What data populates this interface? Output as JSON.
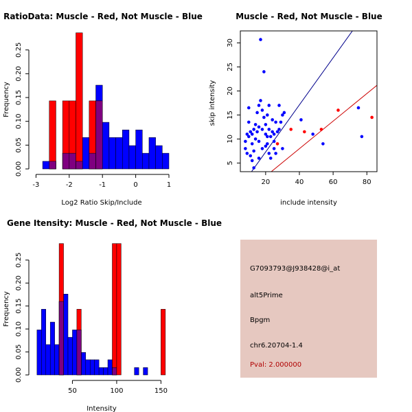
{
  "colors": {
    "red": "#ff0000",
    "blue": "#0000ff",
    "overlap": "#7f0080",
    "panel_bg": "#e6c8c0",
    "pval": "#b00000",
    "fit_blue": "#00008b",
    "fit_red": "#cc0000"
  },
  "chart_data": [
    {
      "id": "ratio_hist",
      "type": "bar",
      "title": "RatioData: Muscle - Red, Not Muscle - Blue",
      "xlabel": "Log2 Ratio Skip/Include",
      "ylabel": "Frequency",
      "xlim": [
        -3.05,
        1.0
      ],
      "ylim": [
        0,
        0.29
      ],
      "xticks": [
        -3,
        -2,
        -1,
        0,
        1
      ],
      "xtick_labels": [
        "-3",
        "-2",
        "-1",
        "0",
        "1"
      ],
      "yticks": [
        0.0,
        0.05,
        0.1,
        0.15,
        0.2,
        0.25
      ],
      "ytick_labels": [
        "0.00",
        "0.05",
        "0.10",
        "0.15",
        "0.20",
        "0.25"
      ],
      "series": [
        {
          "name": "Not Muscle",
          "color": "blue",
          "bins": [
            [
              -2.8,
              -2.6,
              0.016
            ],
            [
              -2.6,
              -2.4,
              0.016
            ],
            [
              -2.2,
              -2.0,
              0.033
            ],
            [
              -2.0,
              -1.8,
              0.033
            ],
            [
              -1.8,
              -1.6,
              0.016
            ],
            [
              -1.6,
              -1.4,
              0.066
            ],
            [
              -1.4,
              -1.2,
              0.033
            ],
            [
              -1.2,
              -1.0,
              0.176
            ],
            [
              -1.0,
              -0.8,
              0.098
            ],
            [
              -0.8,
              -0.6,
              0.066
            ],
            [
              -0.6,
              -0.4,
              0.066
            ],
            [
              -0.4,
              -0.2,
              0.082
            ],
            [
              -0.2,
              0.0,
              0.049
            ],
            [
              0.0,
              0.2,
              0.082
            ],
            [
              0.2,
              0.4,
              0.033
            ],
            [
              0.4,
              0.6,
              0.066
            ],
            [
              0.6,
              0.8,
              0.049
            ],
            [
              0.8,
              1.0,
              0.033
            ]
          ]
        },
        {
          "name": "Muscle",
          "color": "red",
          "bins": [
            [
              -2.6,
              -2.4,
              0.143
            ],
            [
              -2.2,
              -2.0,
              0.143
            ],
            [
              -2.0,
              -1.8,
              0.143
            ],
            [
              -1.8,
              -1.6,
              0.286
            ],
            [
              -1.4,
              -1.2,
              0.143
            ],
            [
              -1.2,
              -1.0,
              0.143
            ]
          ]
        }
      ]
    },
    {
      "id": "scatter",
      "type": "scatter",
      "title": "Muscle - Red, Not Muscle - Blue",
      "xlabel": "include intensity",
      "ylabel": "skip intensity",
      "xlim": [
        5,
        86
      ],
      "ylim": [
        3.2,
        32.5
      ],
      "xticks": [
        20,
        40,
        60,
        80
      ],
      "xtick_labels": [
        "20",
        "40",
        "60",
        "80"
      ],
      "yticks": [
        5,
        10,
        15,
        20,
        25,
        30
      ],
      "ytick_labels": [
        "5",
        "10",
        "15",
        "20",
        "25",
        "30"
      ],
      "blue_points": [
        [
          8,
          8
        ],
        [
          9,
          11
        ],
        [
          8,
          9.5
        ],
        [
          9,
          7
        ],
        [
          10,
          13.5
        ],
        [
          10,
          10.5
        ],
        [
          11,
          6.5
        ],
        [
          11,
          11.5
        ],
        [
          10,
          16.5
        ],
        [
          12,
          11
        ],
        [
          12,
          9
        ],
        [
          13,
          7.5
        ],
        [
          13,
          12
        ],
        [
          13,
          4
        ],
        [
          14,
          10
        ],
        [
          14,
          13
        ],
        [
          15,
          11.5
        ],
        [
          15,
          15.5
        ],
        [
          16,
          12.5
        ],
        [
          16,
          17
        ],
        [
          16,
          9.5
        ],
        [
          17,
          18
        ],
        [
          17,
          30.7
        ],
        [
          18,
          12
        ],
        [
          18,
          16
        ],
        [
          18,
          8
        ],
        [
          19,
          24
        ],
        [
          19,
          14.5
        ],
        [
          20,
          13
        ],
        [
          20,
          11
        ],
        [
          21,
          9
        ],
        [
          21,
          10.5
        ],
        [
          21,
          15
        ],
        [
          22,
          7
        ],
        [
          22,
          12
        ],
        [
          22,
          17
        ],
        [
          23,
          10.5
        ],
        [
          23,
          6
        ],
        [
          24,
          11.5
        ],
        [
          25,
          11
        ],
        [
          25,
          8
        ],
        [
          26,
          13.5
        ],
        [
          26,
          7
        ],
        [
          27,
          11.5
        ],
        [
          28,
          12
        ],
        [
          28,
          17
        ],
        [
          29,
          13.5
        ],
        [
          30,
          15
        ],
        [
          30,
          8
        ],
        [
          31,
          15.5
        ],
        [
          41,
          14
        ],
        [
          48,
          11
        ],
        [
          54,
          9
        ],
        [
          75,
          16.5
        ],
        [
          77,
          10.5
        ],
        [
          25,
          9.5
        ],
        [
          24,
          14
        ],
        [
          16,
          6
        ],
        [
          12,
          5.5
        ],
        [
          20,
          8.5
        ]
      ],
      "red_points": [
        [
          35,
          12
        ],
        [
          43,
          11.5
        ],
        [
          53,
          12
        ],
        [
          63,
          16
        ],
        [
          83,
          14.5
        ],
        [
          27,
          9
        ]
      ],
      "fit_blue": {
        "intercept": -2.5,
        "slope": 0.49
      },
      "fit_red": {
        "intercept": -3.5,
        "slope": 0.287
      }
    },
    {
      "id": "intensity_hist",
      "type": "bar",
      "title": "Gene Itensity: Muscle - Red, Not Muscle - Blue",
      "xlabel": "Intensity",
      "ylabel": "Frequency",
      "xlim": [
        7,
        159
      ],
      "ylim": [
        0,
        0.29
      ],
      "xticks": [
        50,
        100,
        150
      ],
      "xtick_labels": [
        "50",
        "100",
        "150"
      ],
      "yticks": [
        0.0,
        0.05,
        0.1,
        0.15,
        0.2,
        0.25
      ],
      "ytick_labels": [
        "0.00",
        "0.05",
        "0.10",
        "0.15",
        "0.20",
        "0.25"
      ],
      "series": [
        {
          "name": "Not Muscle",
          "color": "blue",
          "bins": [
            [
              10,
              15,
              0.098
            ],
            [
              15,
              20,
              0.143
            ],
            [
              20,
              25,
              0.066
            ],
            [
              25,
              30,
              0.115
            ],
            [
              30,
              35,
              0.066
            ],
            [
              35,
              40,
              0.16
            ],
            [
              40,
              45,
              0.176
            ],
            [
              45,
              50,
              0.082
            ],
            [
              50,
              55,
              0.098
            ],
            [
              55,
              60,
              0.098
            ],
            [
              60,
              65,
              0.049
            ],
            [
              65,
              70,
              0.033
            ],
            [
              70,
              75,
              0.033
            ],
            [
              75,
              80,
              0.033
            ],
            [
              80,
              85,
              0.016
            ],
            [
              85,
              90,
              0.016
            ],
            [
              90,
              95,
              0.033
            ],
            [
              95,
              100,
              0.016
            ],
            [
              120,
              125,
              0.016
            ],
            [
              130,
              135,
              0.016
            ]
          ]
        },
        {
          "name": "Muscle",
          "color": "red",
          "bins": [
            [
              35,
              40,
              0.286
            ],
            [
              55,
              60,
              0.143
            ],
            [
              95,
              100,
              0.286
            ],
            [
              100,
              105,
              0.286
            ],
            [
              150,
              155,
              0.143
            ]
          ]
        }
      ]
    }
  ],
  "info_panel": {
    "probe": "G7093793@J938428@i_at",
    "event": "alt5Prime",
    "gene": "Bpgm",
    "location": "chr6.20704-1.4",
    "pval": "Pval: 2.000000"
  }
}
